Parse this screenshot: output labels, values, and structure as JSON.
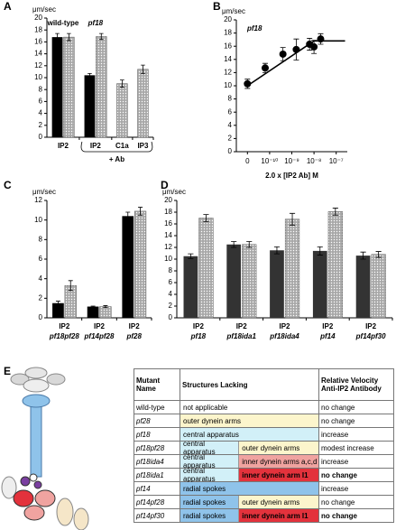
{
  "chart_data": [
    {
      "label": "A",
      "type": "bar",
      "y_label": "μm/sec",
      "ylim": [
        0,
        20
      ],
      "yticks": [
        0,
        2,
        4,
        6,
        8,
        10,
        12,
        14,
        16,
        18,
        20
      ],
      "categories": [
        "IP2",
        "IP2",
        "C1a",
        "IP3"
      ],
      "group_labels": [
        "wild-type",
        "pf18",
        null,
        null
      ],
      "bracket_label": "+ Ab",
      "series": [
        {
          "color": "#000000",
          "values": [
            16.8,
            10.4,
            null,
            null
          ],
          "errors": [
            0.6,
            0.3,
            null,
            null
          ]
        },
        {
          "color": "#a8a8a8",
          "pattern": "dots",
          "values": [
            16.8,
            16.9,
            9.0,
            11.4
          ],
          "errors": [
            0.6,
            0.5,
            0.6,
            0.7
          ]
        }
      ]
    },
    {
      "label": "B",
      "type": "line",
      "title": "pf18",
      "y_label": "μm/sec",
      "x_label": "2.0 x [IP2 Ab] M",
      "xlim": [
        -0.5,
        4.5
      ],
      "ylim": [
        0,
        20
      ],
      "yticks": [
        0,
        2,
        4,
        6,
        8,
        10,
        12,
        14,
        16,
        18,
        20
      ],
      "xticks": [
        {
          "value": 0,
          "label": "0"
        },
        {
          "value": 1,
          "label": "10⁻¹⁰"
        },
        {
          "value": 2,
          "label": "10⁻⁹"
        },
        {
          "value": 3,
          "label": "10⁻⁸"
        },
        {
          "value": 4,
          "label": "10⁻⁷"
        }
      ],
      "x": [
        0,
        0.8,
        1.6,
        2.2,
        2.8,
        3.0,
        3.3
      ],
      "values": [
        10.3,
        12.7,
        14.8,
        15.5,
        16.3,
        15.9,
        17.1
      ],
      "errors": [
        0.7,
        0.7,
        1.0,
        1.6,
        0.9,
        1.0,
        0.8
      ],
      "color": "#000000",
      "fit": {
        "x": [
          0,
          3.0,
          4.4
        ],
        "values": [
          10.0,
          16.8,
          16.8
        ]
      }
    },
    {
      "label": "C",
      "type": "bar",
      "y_label": "μm/sec",
      "ylim": [
        0,
        12
      ],
      "yticks": [
        0,
        2,
        4,
        6,
        8,
        10,
        12
      ],
      "categories": [
        "IP2",
        "IP2",
        "IP2"
      ],
      "strains": [
        "pf18pf28",
        "pf14pf28",
        "pf28"
      ],
      "series": [
        {
          "color": "#000000",
          "values": [
            1.5,
            1.15,
            10.4
          ],
          "errors": [
            0.2,
            0.05,
            0.4
          ]
        },
        {
          "color": "#a8a8a8",
          "pattern": "dots",
          "values": [
            3.3,
            1.15,
            10.9
          ],
          "errors": [
            0.5,
            0.1,
            0.4
          ]
        }
      ]
    },
    {
      "label": "D",
      "type": "bar",
      "y_label": "μm/sec",
      "ylim": [
        0,
        20
      ],
      "yticks": [
        0,
        2,
        4,
        6,
        8,
        10,
        12,
        14,
        16,
        18,
        20
      ],
      "categories": [
        "IP2",
        "IP2",
        "IP2",
        "IP2",
        "IP2"
      ],
      "strains": [
        "pf18",
        "pf18ida1",
        "pf18ida4",
        "pf14",
        "pf14pf30"
      ],
      "series": [
        {
          "color": "#333333",
          "values": [
            10.5,
            12.5,
            11.5,
            11.4,
            10.6
          ],
          "errors": [
            0.4,
            0.5,
            0.6,
            0.7,
            0.6
          ]
        },
        {
          "color": "#a8a8a8",
          "pattern": "dots",
          "values": [
            17.0,
            12.5,
            16.8,
            18.1,
            10.8
          ],
          "errors": [
            0.6,
            0.5,
            1.0,
            0.6,
            0.5
          ]
        }
      ]
    }
  ],
  "table": {
    "label": "E",
    "header": [
      "Mutant Name",
      "Structures Lacking",
      "Relative Velocity Anti-IP2 Antibody"
    ],
    "rows": [
      {
        "mutant": "wild-type",
        "italic": false,
        "structures": [
          {
            "text": "not applicable",
            "color": "#ffffff"
          }
        ],
        "velocity": "no change",
        "bold": false
      },
      {
        "mutant": "pf28",
        "italic": true,
        "structures": [
          {
            "text": "outer dynein arms",
            "color": "#fcf5cc"
          }
        ],
        "velocity": "no change",
        "bold": false
      },
      {
        "mutant": "pf18",
        "italic": true,
        "structures": [
          {
            "text": "central apparatus",
            "color": "#d2f0f8"
          }
        ],
        "velocity": "increase",
        "bold": false
      },
      {
        "mutant": "pf18pf28",
        "italic": true,
        "structures": [
          {
            "text": "central apparatus",
            "color": "#d2f0f8"
          },
          {
            "text": "outer dynein arms",
            "color": "#fcf5cc"
          }
        ],
        "velocity": "modest increase",
        "bold": false
      },
      {
        "mutant": "pf18ida4",
        "italic": true,
        "structures": [
          {
            "text": "central apparatus",
            "color": "#d2f0f8"
          },
          {
            "text": "inner dynein arms a,c,d",
            "color": "#f0a3a0"
          }
        ],
        "velocity": "increase",
        "bold": false
      },
      {
        "mutant": "pf18ida1",
        "italic": true,
        "structures": [
          {
            "text": "central apparatus",
            "color": "#d2f0f8"
          },
          {
            "text": "inner dynein arm I1",
            "color": "#e3323c",
            "bold": true
          }
        ],
        "velocity": "no change",
        "bold": true
      },
      {
        "mutant": "pf14",
        "italic": true,
        "structures": [
          {
            "text": "radial spokes",
            "color": "#8fc3ea"
          }
        ],
        "velocity": "increase",
        "bold": false
      },
      {
        "mutant": "pf14pf28",
        "italic": true,
        "structures": [
          {
            "text": "radial spokes",
            "color": "#8fc3ea"
          },
          {
            "text": "outer dynein arms",
            "color": "#fcf5cc"
          }
        ],
        "velocity": "no change",
        "bold": false
      },
      {
        "mutant": "pf14pf30",
        "italic": true,
        "structures": [
          {
            "text": "radial spokes",
            "color": "#8fc3ea"
          },
          {
            "text": "inner dynein arm I1",
            "color": "#e3323c",
            "bold": true
          }
        ],
        "velocity": "no change",
        "bold": true
      }
    ]
  }
}
